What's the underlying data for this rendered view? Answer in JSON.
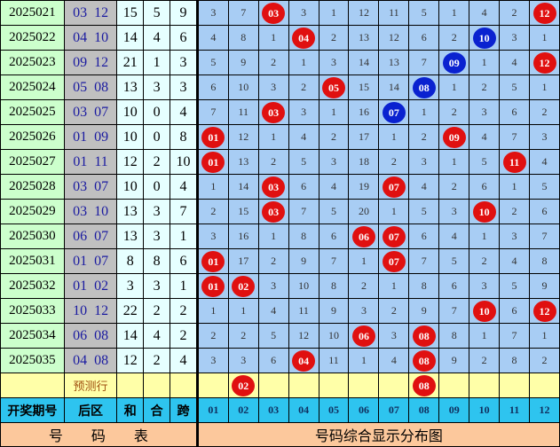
{
  "rows": [
    {
      "period": "2025021",
      "back": "03 12",
      "sum": "15",
      "he": "5",
      "kua": "9",
      "cells": [
        "3",
        "7",
        "03",
        "3",
        "1",
        "12",
        "11",
        "5",
        "1",
        "4",
        "2",
        "12"
      ],
      "hits": [
        3,
        12
      ],
      "blue": []
    },
    {
      "period": "2025022",
      "back": "04 10",
      "sum": "14",
      "he": "4",
      "kua": "6",
      "cells": [
        "4",
        "8",
        "1",
        "04",
        "2",
        "13",
        "12",
        "6",
        "2",
        "10",
        "3",
        "1"
      ],
      "hits": [
        4,
        10
      ],
      "blue": [
        10
      ]
    },
    {
      "period": "2025023",
      "back": "09 12",
      "sum": "21",
      "he": "1",
      "kua": "3",
      "cells": [
        "5",
        "9",
        "2",
        "1",
        "3",
        "14",
        "13",
        "7",
        "09",
        "1",
        "4",
        "12"
      ],
      "hits": [
        9,
        12
      ],
      "blue": [
        9
      ]
    },
    {
      "period": "2025024",
      "back": "05 08",
      "sum": "13",
      "he": "3",
      "kua": "3",
      "cells": [
        "6",
        "10",
        "3",
        "2",
        "05",
        "15",
        "14",
        "08",
        "1",
        "2",
        "5",
        "1"
      ],
      "hits": [
        5,
        8
      ],
      "blue": [
        8
      ]
    },
    {
      "period": "2025025",
      "back": "03 07",
      "sum": "10",
      "he": "0",
      "kua": "4",
      "cells": [
        "7",
        "11",
        "03",
        "3",
        "1",
        "16",
        "07",
        "1",
        "2",
        "3",
        "6",
        "2"
      ],
      "hits": [
        3,
        7
      ],
      "blue": [
        7
      ]
    },
    {
      "period": "2025026",
      "back": "01 09",
      "sum": "10",
      "he": "0",
      "kua": "8",
      "cells": [
        "01",
        "12",
        "1",
        "4",
        "2",
        "17",
        "1",
        "2",
        "09",
        "4",
        "7",
        "3"
      ],
      "hits": [
        1,
        9
      ],
      "blue": []
    },
    {
      "period": "2025027",
      "back": "01 11",
      "sum": "12",
      "he": "2",
      "kua": "10",
      "cells": [
        "01",
        "13",
        "2",
        "5",
        "3",
        "18",
        "2",
        "3",
        "1",
        "5",
        "11",
        "4"
      ],
      "hits": [
        1,
        11
      ],
      "blue": []
    },
    {
      "period": "2025028",
      "back": "03 07",
      "sum": "10",
      "he": "0",
      "kua": "4",
      "cells": [
        "1",
        "14",
        "03",
        "6",
        "4",
        "19",
        "07",
        "4",
        "2",
        "6",
        "1",
        "5"
      ],
      "hits": [
        3,
        7
      ],
      "blue": []
    },
    {
      "period": "2025029",
      "back": "03 10",
      "sum": "13",
      "he": "3",
      "kua": "7",
      "cells": [
        "2",
        "15",
        "03",
        "7",
        "5",
        "20",
        "1",
        "5",
        "3",
        "10",
        "2",
        "6"
      ],
      "hits": [
        3,
        10
      ],
      "blue": []
    },
    {
      "period": "2025030",
      "back": "06 07",
      "sum": "13",
      "he": "3",
      "kua": "1",
      "cells": [
        "3",
        "16",
        "1",
        "8",
        "6",
        "06",
        "07",
        "6",
        "4",
        "1",
        "3",
        "7"
      ],
      "hits": [
        6,
        7
      ],
      "blue": []
    },
    {
      "period": "2025031",
      "back": "01 07",
      "sum": "8",
      "he": "8",
      "kua": "6",
      "cells": [
        "01",
        "17",
        "2",
        "9",
        "7",
        "1",
        "07",
        "7",
        "5",
        "2",
        "4",
        "8"
      ],
      "hits": [
        1,
        7
      ],
      "blue": []
    },
    {
      "period": "2025032",
      "back": "01 02",
      "sum": "3",
      "he": "3",
      "kua": "1",
      "cells": [
        "01",
        "02",
        "3",
        "10",
        "8",
        "2",
        "1",
        "8",
        "6",
        "3",
        "5",
        "9"
      ],
      "hits": [
        1,
        2
      ],
      "blue": []
    },
    {
      "period": "2025033",
      "back": "10 12",
      "sum": "22",
      "he": "2",
      "kua": "2",
      "cells": [
        "1",
        "1",
        "4",
        "11",
        "9",
        "3",
        "2",
        "9",
        "7",
        "10",
        "6",
        "12"
      ],
      "hits": [
        10,
        12
      ],
      "blue": []
    },
    {
      "period": "2025034",
      "back": "06 08",
      "sum": "14",
      "he": "4",
      "kua": "2",
      "cells": [
        "2",
        "2",
        "5",
        "12",
        "10",
        "06",
        "3",
        "08",
        "8",
        "1",
        "7",
        "1"
      ],
      "hits": [
        6,
        8
      ],
      "blue": []
    },
    {
      "period": "2025035",
      "back": "04 08",
      "sum": "12",
      "he": "2",
      "kua": "4",
      "cells": [
        "3",
        "3",
        "6",
        "04",
        "11",
        "1",
        "4",
        "08",
        "9",
        "2",
        "8",
        "2"
      ],
      "hits": [
        4,
        8
      ],
      "blue": []
    }
  ],
  "prediction": {
    "label": "预测行",
    "cells": [
      "",
      "02",
      "",
      "",
      "",
      "",
      "",
      "08",
      "",
      "",
      "",
      ""
    ],
    "hits": [
      2,
      8
    ]
  },
  "header": {
    "period": "开奖期号",
    "back": "后区",
    "sum": "和",
    "he": "合",
    "kua": "跨",
    "numbers": [
      "01",
      "02",
      "03",
      "04",
      "05",
      "06",
      "07",
      "08",
      "09",
      "10",
      "11",
      "12"
    ]
  },
  "footer": {
    "left": "号　　码　　表",
    "right": "号码综合显示分布图"
  },
  "colors": {
    "hit": "#e01010",
    "blue_hit": "#0a22d0",
    "grid": "#a8cdf4",
    "predict_row": "#ffffa8",
    "header": "#2ec4ef",
    "footer": "#fcc89c"
  }
}
